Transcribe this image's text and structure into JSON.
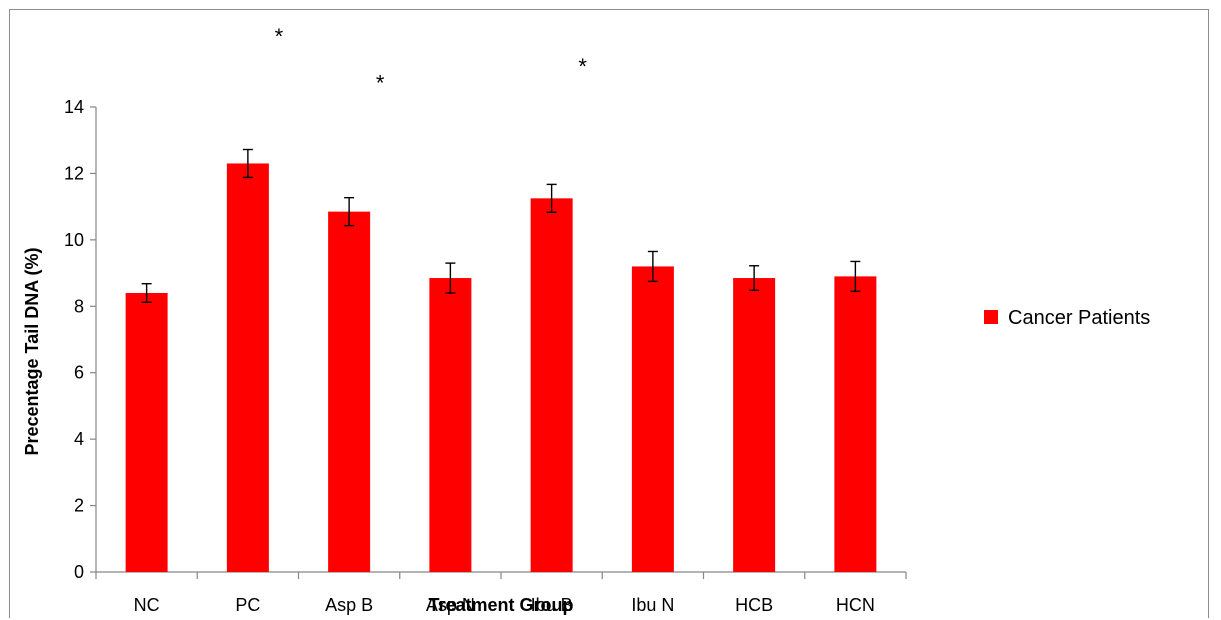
{
  "chart_data": {
    "type": "bar",
    "title": "",
    "xlabel": "Treatment Group",
    "ylabel": "Precentage Tail DNA (%)",
    "ylim": [
      0,
      14
    ],
    "yticks": [
      0,
      2,
      4,
      6,
      8,
      10,
      12,
      14
    ],
    "categories": [
      "NC",
      "PC",
      "Asp B",
      "Asp N",
      "Ibu B",
      "Ibu N",
      "HCB",
      "HCN"
    ],
    "series": [
      {
        "name": "Cancer Patients",
        "color": "#ff0000",
        "values": [
          8.4,
          12.3,
          10.85,
          8.85,
          11.25,
          9.2,
          8.85,
          8.9
        ],
        "errors": [
          0.28,
          0.42,
          0.42,
          0.45,
          0.42,
          0.45,
          0.37,
          0.45
        ]
      }
    ],
    "annotations": [
      {
        "category": "PC",
        "text": "*",
        "y": 16.2
      },
      {
        "category": "Asp B",
        "text": "*",
        "y": 14.8
      },
      {
        "category": "Ibu B",
        "text": "*",
        "y": 15.3
      }
    ],
    "grid": false,
    "legend": "right"
  }
}
